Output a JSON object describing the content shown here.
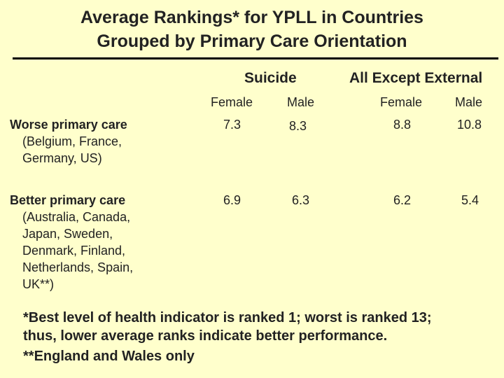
{
  "title": {
    "line1": "Average Rankings* for YPLL in Countries",
    "line2": "Grouped by Primary Care Orientation"
  },
  "groups": {
    "suicide": "Suicide",
    "all_except_external": "All Except External"
  },
  "columns": {
    "suicide_female": "Female",
    "suicide_male": "Male",
    "external_female": "Female",
    "external_male": "Male"
  },
  "rows": [
    {
      "label": "Worse primary care",
      "countries": [
        "(Belgium, France,",
        "Germany, US)"
      ],
      "values": [
        "7.3",
        "8.3",
        "8.8",
        "10.8"
      ]
    },
    {
      "label": "Better primary care",
      "countries": [
        "(Australia, Canada,",
        "Japan, Sweden,",
        "Denmark, Finland,",
        "Netherlands, Spain,",
        "UK**)"
      ],
      "values": [
        "6.9",
        "6.3",
        "6.2",
        "5.4"
      ]
    }
  ],
  "footnotes": [
    "*Best level of health indicator is ranked 1; worst is ranked 13;",
    "thus, lower average ranks indicate better performance.",
    "**England and Wales only"
  ]
}
